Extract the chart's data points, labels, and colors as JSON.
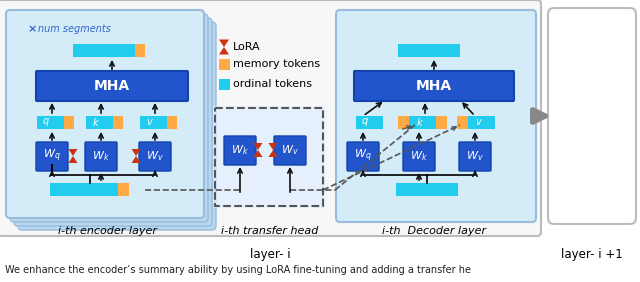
{
  "bg_color": "#ffffff",
  "light_blue_bg": "#cce4f7",
  "lighter_blue_bg": "#daeeff",
  "blue_box": "#2255cc",
  "cyan_token": "#22ccee",
  "orange_token": "#ffaa44",
  "red_lora": "#cc3311",
  "dark_blue_w": "#1144aa",
  "arrow_color": "#111111",
  "gray_arrow": "#777777",
  "text_blue_label": "#3366cc",
  "label_encoder": "i-th encoder layer",
  "label_transfer": "i-th transfer head",
  "label_decoder": "i-th  Decoder layer",
  "label_layer_i": "layer- i",
  "label_layer_i1": "layer- i +1",
  "legend_lora": "LoRA",
  "legend_memory": "memory tokens",
  "legend_ordinal": "ordinal tokens",
  "caption": "We enhance the encoder’s summary ability by using LoRA fine-tuning and adding a transfer he"
}
